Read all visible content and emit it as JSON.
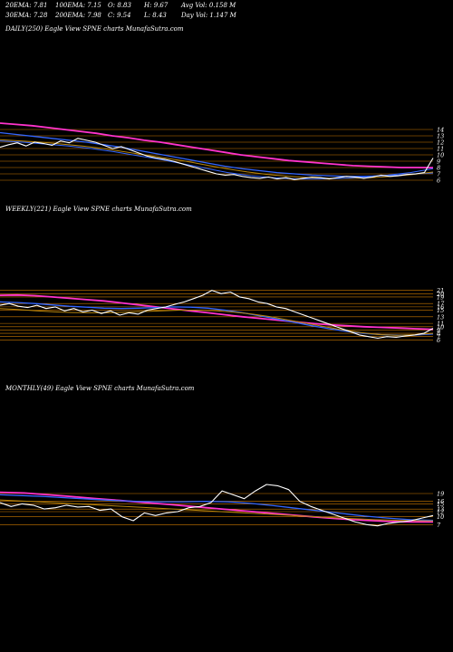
{
  "header": {
    "row1": [
      "20EMA: 7.81",
      "100EMA: 7.15",
      "O: 8.83",
      "H: 9.67",
      "Avg Vol: 0.158  M"
    ],
    "row2": [
      "30EMA: 7.28",
      "200EMA: 7.98",
      "C: 9.54",
      "L: 8.43",
      "Day Vol: 1.147 M"
    ]
  },
  "colors": {
    "price": "#ffffff",
    "ema_pink": "#ff33cc",
    "ema_blue": "#3366ff",
    "ema_brown": "#b8860b",
    "grid": "#cc7a00"
  },
  "chart_data": [
    {
      "type": "line",
      "title": "DAILY(250) Eagle  View  SPNE charts MunafaSutra.com",
      "ylim": [
        5,
        15
      ],
      "y_ticks": [
        14,
        13,
        12,
        11,
        10,
        9,
        8,
        7,
        6
      ],
      "series": [
        {
          "values": [
            11.2,
            11.6,
            11.9,
            11.4,
            12.0,
            11.8,
            11.5,
            12.2,
            11.9,
            12.6,
            12.3,
            12.0,
            11.5,
            11.0,
            11.3,
            10.8,
            10.3,
            9.8,
            9.5,
            9.3,
            9.0,
            8.6,
            8.2,
            7.8,
            7.4,
            7.0,
            6.8,
            6.9,
            6.6,
            6.4,
            6.3,
            6.5,
            6.2,
            6.4,
            6.1,
            6.3,
            6.5,
            6.4,
            6.2,
            6.4,
            6.6,
            6.5,
            6.3,
            6.5,
            6.8,
            6.6,
            6.7,
            6.9,
            7.0,
            7.2,
            9.5
          ]
        },
        {
          "values": [
            15.0,
            14.8,
            14.6,
            14.3,
            14.0,
            13.7,
            13.4,
            13.0,
            12.7,
            12.3,
            12.0,
            11.6,
            11.2,
            10.8,
            10.4,
            10.0,
            9.7,
            9.4,
            9.1,
            8.9,
            8.7,
            8.5,
            8.3,
            8.2,
            8.1,
            8.0,
            8.0,
            7.98
          ]
        },
        {
          "values": [
            13.5,
            13.2,
            12.9,
            12.6,
            12.3,
            12.0,
            11.6,
            11.2,
            10.7,
            10.2,
            9.7,
            9.2,
            8.7,
            8.2,
            7.8,
            7.5,
            7.2,
            7.0,
            6.8,
            6.7,
            6.6,
            6.6,
            6.7,
            6.8,
            7.0,
            7.15
          ]
        },
        {
          "values": [
            12.4,
            12.2,
            12.0,
            11.7,
            11.4,
            11.0,
            10.5,
            10.0,
            9.5,
            9.0,
            8.4,
            7.8,
            7.3,
            6.9,
            6.6,
            6.4,
            6.3,
            6.3,
            6.4,
            6.6,
            6.9,
            7.28
          ]
        },
        {
          "values": [
            12.2,
            12.0,
            11.7,
            11.4,
            11.0,
            10.5,
            9.9,
            9.3,
            8.6,
            7.9,
            7.2,
            6.7,
            6.4,
            6.2,
            6.2,
            6.3,
            6.5,
            6.8,
            7.2,
            7.81
          ]
        }
      ]
    },
    {
      "type": "line",
      "title": "WEEKLY(221) Eagle  View  SPNE charts MunafaSutra.com",
      "ylim": [
        5,
        22
      ],
      "y_ticks": [
        21,
        20,
        19,
        17,
        16,
        15,
        13,
        11,
        10,
        9,
        8,
        7,
        6
      ],
      "series": [
        {
          "values": [
            16.5,
            17.0,
            16.2,
            15.8,
            16.5,
            15.5,
            16.0,
            14.8,
            15.5,
            14.5,
            15.0,
            14.0,
            14.8,
            13.5,
            14.2,
            13.8,
            15.0,
            15.5,
            16.0,
            16.8,
            17.5,
            18.5,
            19.5,
            21.0,
            20.0,
            20.5,
            19.0,
            18.5,
            17.5,
            17.0,
            16.0,
            15.5,
            14.5,
            13.5,
            12.5,
            11.5,
            10.5,
            9.5,
            8.5,
            7.5,
            7.0,
            6.5,
            7.0,
            6.8,
            7.2,
            7.5,
            8.0,
            9.5
          ]
        },
        {
          "values": [
            19.5,
            19.6,
            19.4,
            19.0,
            18.6,
            18.2,
            17.8,
            17.2,
            16.6,
            16.0,
            15.4,
            14.8,
            14.2,
            13.6,
            13.0,
            12.5,
            12.0,
            11.5,
            11.0,
            10.6,
            10.3,
            10.0,
            9.8,
            9.6,
            9.4,
            9.2
          ]
        },
        {
          "values": [
            17.5,
            17.3,
            17.0,
            16.6,
            16.2,
            15.9,
            15.6,
            15.5,
            15.6,
            15.8,
            16.0,
            15.9,
            15.6,
            15.0,
            14.2,
            13.3,
            12.3,
            11.3,
            10.3,
            9.4,
            8.6,
            8.0,
            7.6,
            7.4,
            7.5,
            7.8
          ]
        },
        {
          "values": [
            15.5,
            15.2,
            14.8,
            14.5,
            14.3,
            14.2,
            14.2,
            14.4,
            14.6,
            14.8,
            15.0,
            15.0,
            14.8,
            14.4,
            13.8,
            13.0,
            12.0,
            11.0,
            10.0,
            9.0,
            8.2,
            7.6,
            7.4,
            7.6,
            8.0
          ]
        }
      ]
    },
    {
      "type": "line",
      "title": "MONTHLY(49) Eagle  View  SPNE charts MunafaSutra.com",
      "ylim": [
        5,
        26
      ],
      "y_ticks": [
        19,
        16,
        15,
        13,
        12,
        10,
        7
      ],
      "series": [
        {
          "values": [
            15.5,
            14.0,
            15.0,
            14.5,
            13.0,
            13.5,
            14.5,
            13.8,
            14.0,
            12.5,
            13.0,
            10.0,
            8.5,
            11.5,
            10.5,
            11.5,
            12.0,
            13.5,
            14.0,
            15.5,
            20.0,
            18.5,
            17.0,
            20.0,
            22.5,
            22.0,
            20.5,
            16.0,
            14.0,
            12.5,
            11.0,
            9.5,
            8.0,
            7.0,
            6.5,
            7.5,
            8.0,
            8.5,
            9.5,
            10.5
          ]
        },
        {
          "values": [
            19.5,
            19.2,
            18.5,
            17.8,
            17.0,
            16.3,
            15.5,
            14.8,
            14.0,
            13.2,
            12.4,
            11.6,
            10.8,
            10.0,
            9.3,
            8.7,
            8.3,
            8.0,
            8.0
          ]
        },
        {
          "values": [
            18.5,
            18.2,
            17.8,
            17.3,
            16.8,
            16.3,
            16.0,
            15.8,
            15.8,
            16.0,
            15.8,
            15.2,
            14.3,
            13.3,
            12.3,
            11.3,
            10.3,
            9.5,
            8.9,
            8.6
          ]
        },
        {
          "values": [
            16.5,
            16.0,
            15.4,
            14.8,
            14.2,
            13.6,
            13.0,
            12.4,
            11.8,
            11.2,
            10.6,
            10.0,
            9.4,
            8.9,
            8.6,
            8.4
          ]
        }
      ]
    }
  ]
}
